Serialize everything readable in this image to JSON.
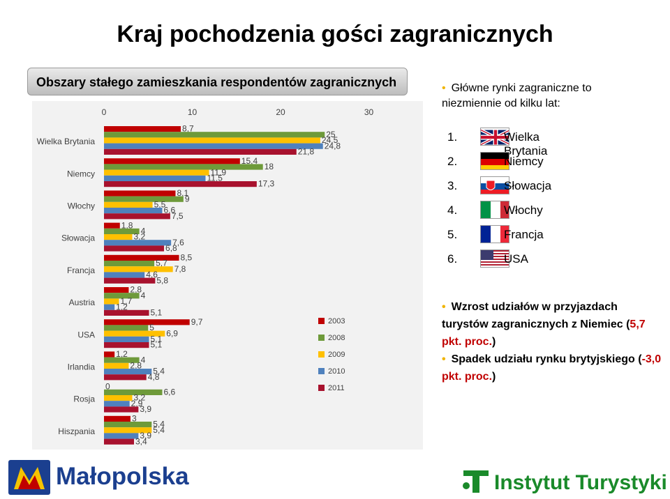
{
  "page": {
    "title": "Kraj pochodzenia gości zagranicznych",
    "subtitle": "Obszary stałego zamieszkania respondentów zagranicznych"
  },
  "chart_data": {
    "type": "bar",
    "orientation": "horizontal",
    "xlim": [
      0,
      30
    ],
    "ticks": [
      "0",
      "10",
      "20",
      "30"
    ],
    "categories": [
      "Wielka Brytania",
      "Niemcy",
      "Włochy",
      "Słowacja",
      "Francja",
      "Austria",
      "USA",
      "Irlandia",
      "Rosja",
      "Hiszpania"
    ],
    "series": [
      {
        "name": "2003",
        "color": "#c00000",
        "values": [
          8.7,
          15.4,
          8.1,
          1.8,
          8.5,
          2.8,
          9.7,
          1.2,
          0,
          3
        ]
      },
      {
        "name": "2008",
        "color": "#6e9a3a",
        "values": [
          25,
          18,
          9,
          4,
          5.7,
          4,
          5,
          4,
          6.6,
          5.4
        ]
      },
      {
        "name": "2009",
        "color": "#ffc000",
        "values": [
          24.5,
          11.9,
          5.5,
          3.2,
          7.8,
          1.7,
          6.9,
          2.8,
          3.2,
          5.4
        ]
      },
      {
        "name": "2010",
        "color": "#4f81bd",
        "values": [
          24.8,
          11.5,
          6.6,
          7.6,
          4.6,
          1.2,
          5.1,
          5.4,
          2.9,
          3.9
        ]
      },
      {
        "name": "2011",
        "color": "#a8122e",
        "values": [
          21.8,
          17.3,
          7.5,
          6.8,
          5.8,
          5.1,
          5.1,
          4.8,
          3.9,
          3.4
        ]
      }
    ]
  },
  "markets": {
    "heading": "Główne rynki zagraniczne to niezmiennie od kilku lat:",
    "items": [
      {
        "num": "1.",
        "name": "Wielka Brytania",
        "flag": "uk-flag"
      },
      {
        "num": "2.",
        "name": "Niemcy",
        "flag": "germany-flag"
      },
      {
        "num": "3.",
        "name": "Słowacja",
        "flag": "slovakia-flag"
      },
      {
        "num": "4.",
        "name": "Włochy",
        "flag": "italy-flag"
      },
      {
        "num": "5.",
        "name": "Francja",
        "flag": "france-flag"
      },
      {
        "num": "6.",
        "name": "USA",
        "flag": "usa-flag"
      }
    ]
  },
  "notes": {
    "n1": "Wzrost udziałów w przyjazdach turystów zagranicznych z Niemiec",
    "n1_open": "(",
    "n1_value": "5,7 pkt. proc.",
    "n1_close": ")",
    "n2": "Spadek udziału rynku brytyjskiego",
    "n2_open": "(",
    "n2_value": "-3,0 pkt. proc.",
    "n2_close": ")"
  },
  "logos": {
    "left": "Małopolska",
    "right": "Instytut Turystyki"
  },
  "colors": {
    "accent_red": "#c00000",
    "logo_blue": "#1b3f8f",
    "logo_green": "#1a8a2a"
  }
}
